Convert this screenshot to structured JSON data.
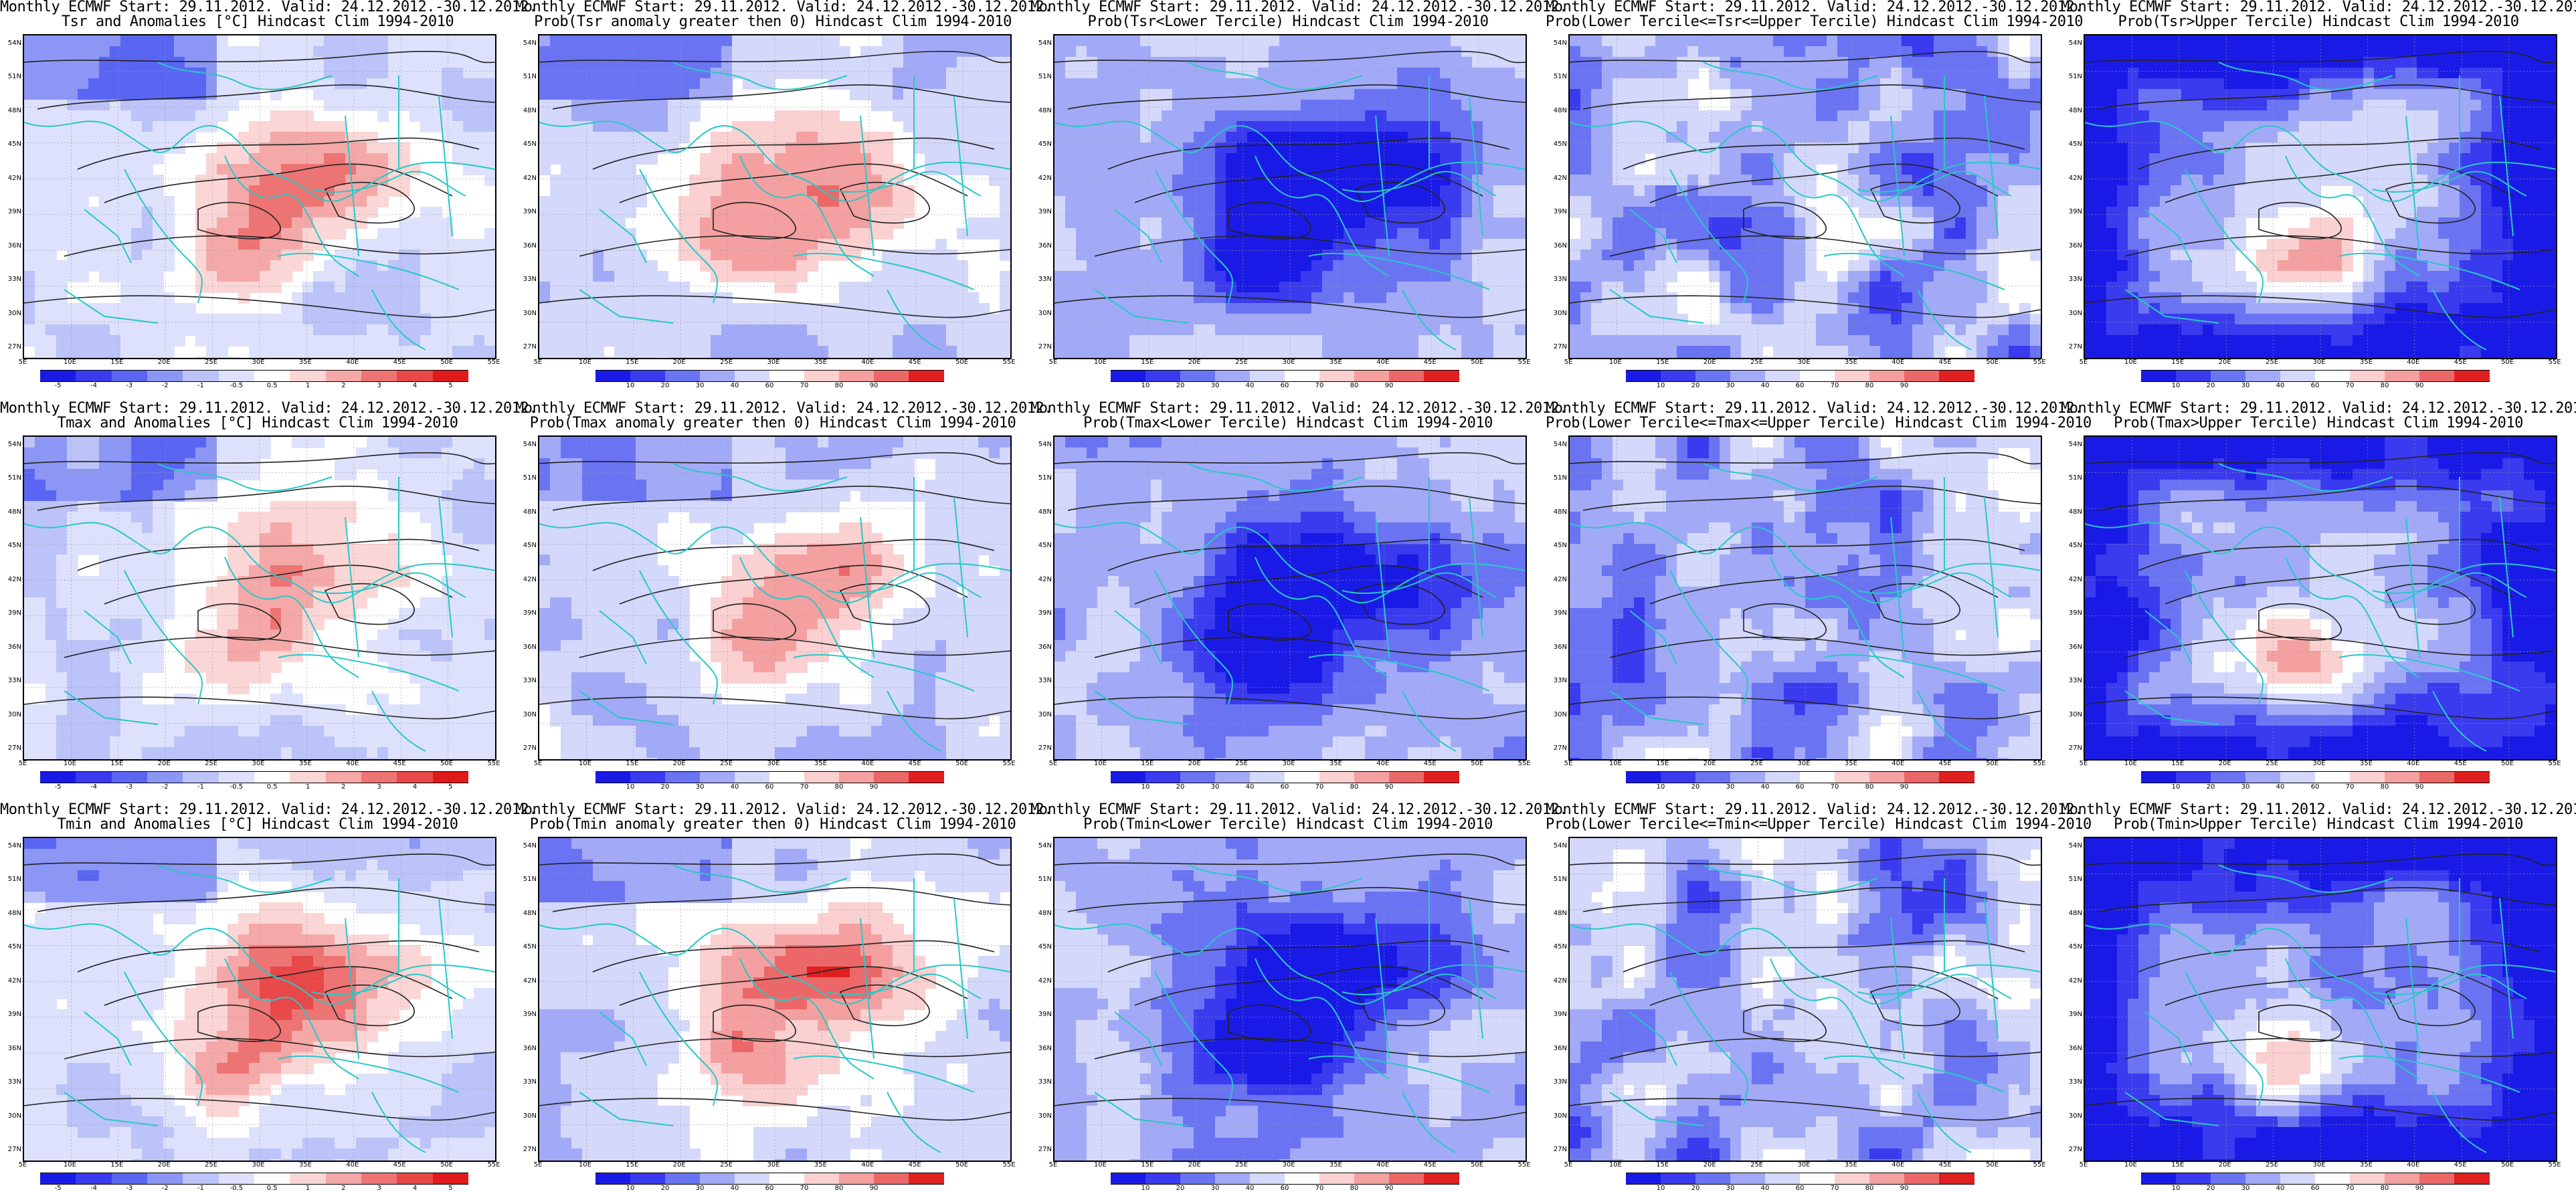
{
  "title_line1": "Monthly ECMWF Start: 29.11.2012. Valid: 24.12.2012.-30.12.2012.",
  "lat_labels": [
    "54N",
    "51N",
    "48N",
    "45N",
    "42N",
    "39N",
    "36N",
    "33N",
    "30N",
    "27N"
  ],
  "lon_labels": [
    "5E",
    "10E",
    "15E",
    "20E",
    "25E",
    "30E",
    "35E",
    "40E",
    "45E",
    "50E",
    "55E"
  ],
  "colors": {
    "anomaly": [
      "#1a1ae6",
      "#3a3aef",
      "#5a66f2",
      "#8c96f5",
      "#bcc3f8",
      "#dde1fb",
      "#ffffff",
      "#fbd6d6",
      "#f5a8a8",
      "#ee7474",
      "#e84848",
      "#e01a1a"
    ],
    "prob": [
      "#1a1ae6",
      "#3a3aef",
      "#6a74f3",
      "#a2aaf7",
      "#d4d8fa",
      "#ffffff",
      "#fbd0d0",
      "#f4a0a0",
      "#ec6868",
      "#e02020"
    ],
    "coast": "#28c8c8",
    "contour": "#222222"
  },
  "colorbars": {
    "anomaly": [
      "-5",
      "-4",
      "-3",
      "-2",
      "-1",
      "-0.5",
      "0.5",
      "1",
      "2",
      "3",
      "4",
      "5"
    ],
    "prob": [
      "10",
      "20",
      "30",
      "40",
      "60",
      "70",
      "80",
      "90"
    ]
  },
  "panels": [
    {
      "id": "tsr-anom",
      "line2": "Tsr and Anomalies [°C] Hindcast Clim 1994-2010",
      "kind": "anomaly",
      "pattern": "warm-centre",
      "intensity": 0.75
    },
    {
      "id": "tsr-pos",
      "line2": "Prob(Tsr anomaly greater then 0) Hindcast Clim 1994-2010",
      "kind": "prob",
      "pattern": "warm-centre",
      "intensity": 0.8
    },
    {
      "id": "tsr-lower",
      "line2": "Prob(Tsr<Lower Tercile) Hindcast Clim 1994-2010",
      "kind": "prob",
      "pattern": "cold-centre",
      "intensity": 0.9
    },
    {
      "id": "tsr-middle",
      "line2": "Prob(Lower Tercile<=Tsr<=Upper Tercile) Hindcast Clim 1994-2010",
      "kind": "prob",
      "pattern": "blue-patchy",
      "intensity": 0.55
    },
    {
      "id": "tsr-upper",
      "line2": "Prob(Tsr>Upper Tercile) Hindcast Clim 1994-2010",
      "kind": "prob",
      "pattern": "blue-edges",
      "intensity": 0.75
    },
    {
      "id": "tmax-anom",
      "line2": "Tmax and Anomalies [°C] Hindcast Clim 1994-2010",
      "kind": "anomaly",
      "pattern": "warm-centre",
      "intensity": 0.65
    },
    {
      "id": "tmax-pos",
      "line2": "Prob(Tmax anomaly greater then 0) Hindcast Clim 1994-2010",
      "kind": "prob",
      "pattern": "warm-centre",
      "intensity": 0.7
    },
    {
      "id": "tmax-lower",
      "line2": "Prob(Tmax<Lower Tercile) Hindcast Clim 1994-2010",
      "kind": "prob",
      "pattern": "cold-centre",
      "intensity": 0.85
    },
    {
      "id": "tmax-middle",
      "line2": "Prob(Lower Tercile<=Tmax<=Upper Tercile) Hindcast Clim 1994-2010",
      "kind": "prob",
      "pattern": "blue-patchy",
      "intensity": 0.5
    },
    {
      "id": "tmax-upper",
      "line2": "Prob(Tmax>Upper Tercile) Hindcast Clim 1994-2010",
      "kind": "prob",
      "pattern": "blue-edges",
      "intensity": 0.7
    },
    {
      "id": "tmin-anom",
      "line2": "Tmin and Anomalies [°C] Hindcast Clim 1994-2010",
      "kind": "anomaly",
      "pattern": "warm-centre",
      "intensity": 0.8
    },
    {
      "id": "tmin-pos",
      "line2": "Prob(Tmin anomaly greater then 0) Hindcast Clim 1994-2010",
      "kind": "prob",
      "pattern": "warm-centre",
      "intensity": 0.85
    },
    {
      "id": "tmin-lower",
      "line2": "Prob(Tmin<Lower Tercile) Hindcast Clim 1994-2010",
      "kind": "prob",
      "pattern": "cold-centre",
      "intensity": 0.9
    },
    {
      "id": "tmin-middle",
      "line2": "Prob(Lower Tercile<=Tmin<=Upper Tercile) Hindcast Clim 1994-2010",
      "kind": "prob",
      "pattern": "blue-patchy",
      "intensity": 0.6
    },
    {
      "id": "tmin-upper",
      "line2": "Prob(Tmin>Upper Tercile) Hindcast Clim 1994-2010",
      "kind": "prob",
      "pattern": "blue-edges",
      "intensity": 0.8
    }
  ]
}
